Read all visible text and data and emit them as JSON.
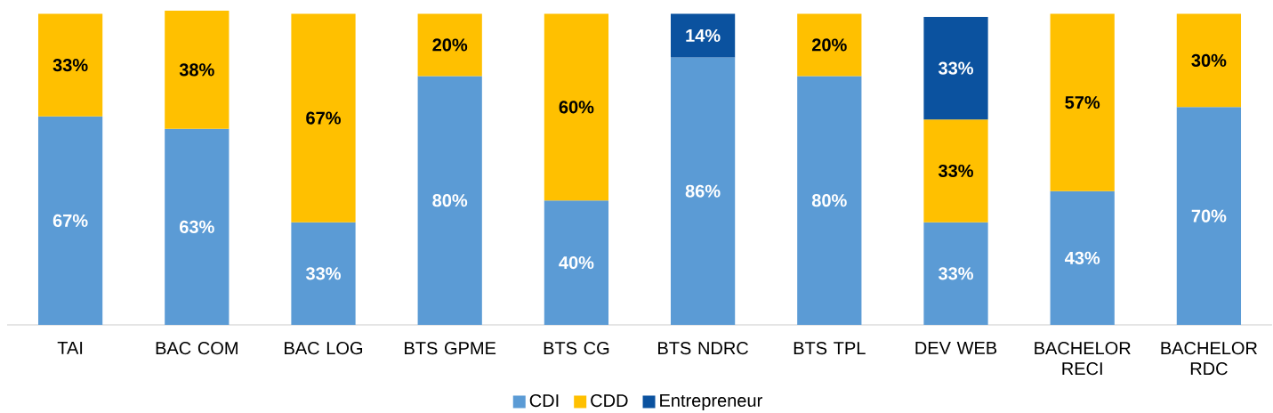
{
  "chart_data": {
    "type": "bar",
    "stacked": true,
    "categories": [
      "TAI",
      "BAC COM",
      "BAC LOG",
      "BTS GPME",
      "BTS CG",
      "BTS NDRC",
      "BTS TPL",
      "DEV WEB",
      "BACHELOR RECI",
      "BACHELOR RDC"
    ],
    "series": [
      {
        "name": "CDI",
        "color": "#5b9bd5",
        "values": [
          67,
          63,
          33,
          80,
          40,
          86,
          80,
          33,
          43,
          70
        ],
        "value_labels": [
          "67%",
          "63%",
          "33%",
          "80%",
          "40%",
          "86%",
          "80%",
          "33%",
          "43%",
          "70%"
        ]
      },
      {
        "name": "CDD",
        "color": "#ffc000",
        "values": [
          33,
          38,
          67,
          20,
          60,
          null,
          20,
          33,
          57,
          30
        ],
        "value_labels": [
          "33%",
          "38%",
          "67%",
          "20%",
          "60%",
          null,
          "20%",
          "33%",
          "57%",
          "30%"
        ]
      },
      {
        "name": "Entrepreneur",
        "color": "#0b529f",
        "values": [
          null,
          null,
          null,
          null,
          null,
          14,
          null,
          33,
          null,
          null
        ],
        "value_labels": [
          null,
          null,
          null,
          null,
          null,
          "14%",
          null,
          "33%",
          null,
          null
        ]
      }
    ],
    "ylim": [
      0,
      101
    ],
    "legend": "bottom"
  }
}
